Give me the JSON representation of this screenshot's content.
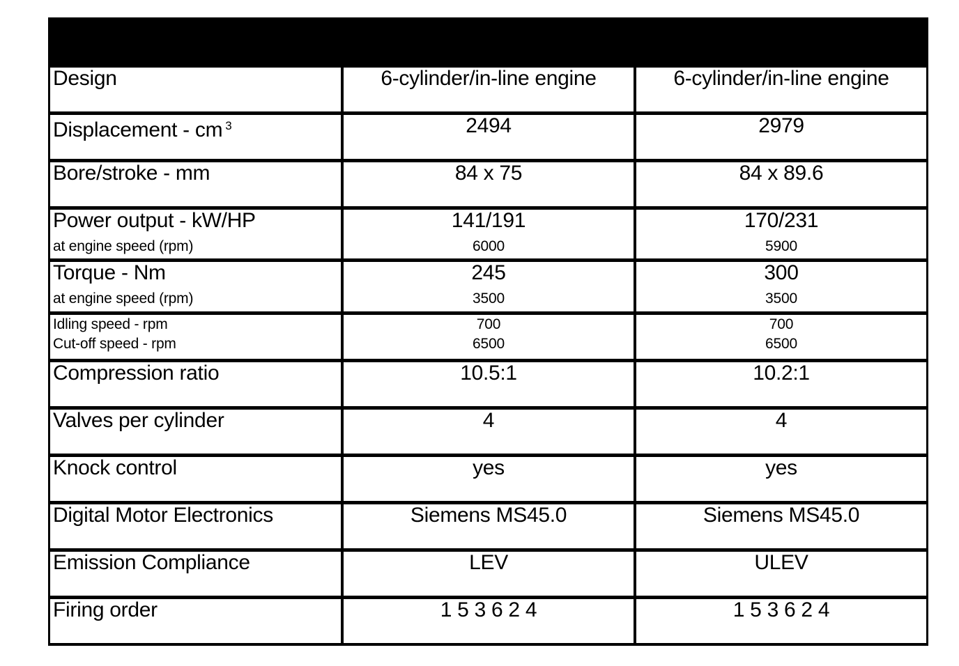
{
  "header": {
    "background": "#000000"
  },
  "rows": [
    {
      "label": "Design",
      "values": [
        {
          "main": "6-cylinder/in-line engine"
        },
        {
          "main": "6-cylinder/in-line engine"
        }
      ]
    },
    {
      "label": "Displacement - cm",
      "label_sup": "3",
      "values": [
        {
          "main": "2494"
        },
        {
          "main": "2979"
        }
      ]
    },
    {
      "label": "Bore/stroke - mm",
      "values": [
        {
          "main": "84 x 75"
        },
        {
          "main": "84 x 89.6"
        }
      ]
    },
    {
      "label": "Power output - kW/HP",
      "sub_label": "at engine speed (rpm)",
      "values": [
        {
          "main": "141/191",
          "sub": "6000"
        },
        {
          "main": "170/231",
          "sub": "5900"
        }
      ]
    },
    {
      "label": "Torque - Nm",
      "sub_label": "at engine speed (rpm)",
      "values": [
        {
          "main": "245",
          "sub": "3500"
        },
        {
          "main": "300",
          "sub": "3500"
        }
      ]
    },
    {
      "small_lines": [
        "Idling speed - rpm",
        "Cut-off speed - rpm"
      ],
      "values": [
        {
          "small_lines": [
            "700",
            "6500"
          ]
        },
        {
          "small_lines": [
            "700",
            "6500"
          ]
        }
      ]
    },
    {
      "label": "Compression ratio",
      "values": [
        {
          "main": "10.5:1"
        },
        {
          "main": "10.2:1"
        }
      ]
    },
    {
      "label": "Valves per cylinder",
      "values": [
        {
          "main": "4"
        },
        {
          "main": "4"
        }
      ]
    },
    {
      "label": "Knock control",
      "values": [
        {
          "main": "yes"
        },
        {
          "main": "yes"
        }
      ]
    },
    {
      "label": "Digital Motor Electronics",
      "values": [
        {
          "main": "Siemens MS45.0"
        },
        {
          "main": "Siemens MS45.0"
        }
      ]
    },
    {
      "label": "Emission Compliance",
      "values": [
        {
          "main": "LEV"
        },
        {
          "main": "ULEV"
        }
      ]
    },
    {
      "label": "Firing order",
      "values": [
        {
          "main": "1 5 3 6 2 4"
        },
        {
          "main": "1 5 3 6 2 4"
        }
      ]
    }
  ]
}
